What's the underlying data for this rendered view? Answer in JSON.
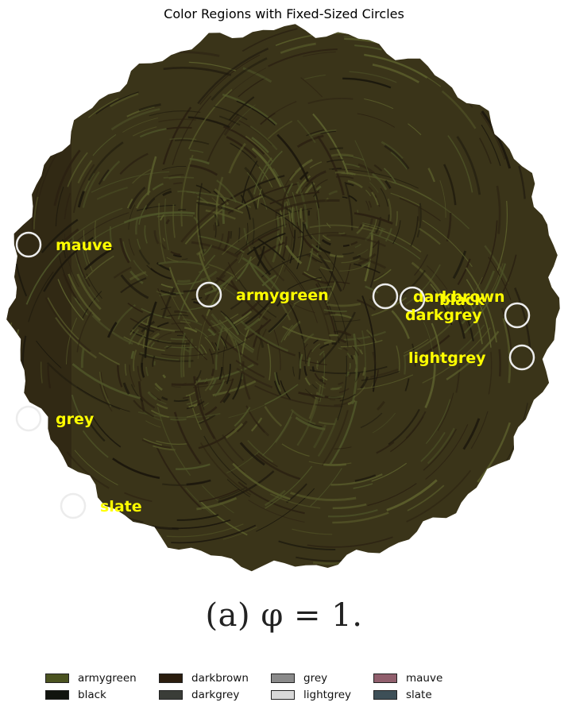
{
  "chart_data": {
    "type": "scatter",
    "title": "Color Regions with Fixed-Sized Circles",
    "caption": "(a) φ = 1.",
    "image": {
      "description_colors": {
        "base": "#3a3419",
        "dark": "#2a2011",
        "green": "#4e5428",
        "olive": "#5b5f2c",
        "noise": "#1a160c"
      }
    },
    "markers": {
      "circle_stroke": "#ececec",
      "label_color": "#ffff00"
    },
    "points": [
      {
        "label": "mauve"
      },
      {
        "label": "armygreen"
      },
      {
        "label": "darkbrown"
      },
      {
        "label": "black"
      },
      {
        "label": "darkgrey"
      },
      {
        "label": "lightgrey"
      },
      {
        "label": "grey"
      },
      {
        "label": "slate"
      }
    ],
    "legend": {
      "placement": "bottom",
      "entries": [
        {
          "name": "armygreen",
          "color": "#4b5320"
        },
        {
          "name": "black",
          "color": "#11140f"
        },
        {
          "name": "darkbrown",
          "color": "#2b1d0e"
        },
        {
          "name": "darkgrey",
          "color": "#3a3d38"
        },
        {
          "name": "grey",
          "color": "#8a8a8a"
        },
        {
          "name": "lightgrey",
          "color": "#d8d8d8"
        },
        {
          "name": "mauve",
          "color": "#915f6d"
        },
        {
          "name": "slate",
          "color": "#3d4f57"
        }
      ]
    },
    "grid": false
  }
}
